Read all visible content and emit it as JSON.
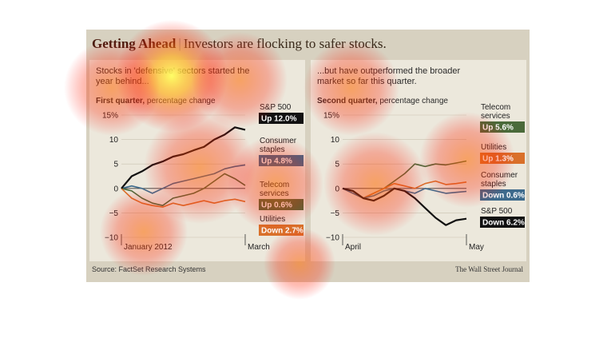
{
  "header": {
    "title_bold": "Getting Ahead",
    "separator": "|",
    "title_rest": "Investors are flocking to safer stocks."
  },
  "left": {
    "subtitle": "Stocks in 'defensive' sectors started the year behind...",
    "quarter_bold": "First quarter,",
    "quarter_rest": " percentage change",
    "x_start": "January 2012",
    "x_end": "March"
  },
  "right": {
    "subtitle": "...but have outperformed the broader market so far this quarter.",
    "quarter_bold": "Second quarter,",
    "quarter_rest": " percentage change",
    "x_start": "April",
    "x_end": "May"
  },
  "footer": {
    "source": "Source: FactSet Research Systems",
    "credit": "The Wall Street Journal"
  },
  "colors": {
    "sp500": "#111111",
    "consumer": "#3d6a8c",
    "telecom": "#4a6a3a",
    "utilities": "#d9702a"
  },
  "chart_data": [
    {
      "type": "line",
      "title": "First quarter, percentage change",
      "ylim": [
        -10,
        15
      ],
      "yticks": [
        "15%",
        "10",
        "5",
        "0",
        "−5",
        "−10"
      ],
      "ytick_values": [
        15,
        10,
        5,
        0,
        -5,
        -10
      ],
      "x": [
        0,
        1,
        2,
        3,
        4,
        5,
        6,
        7,
        8,
        9,
        10,
        11,
        12
      ],
      "series": [
        {
          "name": "S&P 500",
          "label": "Up 12.0%",
          "key": "sp500",
          "values": [
            0,
            2.5,
            3.5,
            4.8,
            5.5,
            6.5,
            7.0,
            7.8,
            8.5,
            10.0,
            11.0,
            12.5,
            12.0
          ]
        },
        {
          "name": "Consumer staples",
          "label": "Up 4.8%",
          "key": "consumer",
          "values": [
            0,
            0.5,
            0,
            -1,
            0,
            1,
            1.5,
            2,
            2.5,
            3,
            4,
            4.5,
            4.8
          ]
        },
        {
          "name": "Telecom services",
          "label": "Up 0.6%",
          "key": "telecom",
          "values": [
            0,
            -0.5,
            -2,
            -3,
            -3.5,
            -2,
            -1.5,
            -1,
            0,
            1.5,
            3,
            2,
            0.6
          ]
        },
        {
          "name": "Utilities",
          "label": "Down 2.7%",
          "key": "utilities",
          "values": [
            0,
            -2,
            -3,
            -3.5,
            -3.8,
            -3,
            -3.5,
            -3,
            -2.5,
            -3,
            -2.5,
            -2.2,
            -2.7
          ]
        }
      ]
    },
    {
      "type": "line",
      "title": "Second quarter, percentage change",
      "ylim": [
        -10,
        15
      ],
      "yticks": [
        "15%",
        "10",
        "5",
        "0",
        "−5",
        "−10"
      ],
      "ytick_values": [
        15,
        10,
        5,
        0,
        -5,
        -10
      ],
      "x": [
        0,
        1,
        2,
        3,
        4,
        5,
        6,
        7,
        8,
        9,
        10,
        11,
        12
      ],
      "series": [
        {
          "name": "Telecom services",
          "label": "Up 5.6%",
          "key": "telecom",
          "values": [
            0,
            -0.5,
            -2,
            -1,
            0,
            1.5,
            3,
            5,
            4.5,
            5,
            4.8,
            5.2,
            5.6
          ]
        },
        {
          "name": "Utilities",
          "label": "Up 1.3%",
          "key": "utilities",
          "values": [
            0,
            -1,
            -2,
            -1,
            0,
            1,
            0.5,
            0,
            1,
            1.5,
            0.8,
            1,
            1.3
          ]
        },
        {
          "name": "Consumer staples",
          "label": "Down 0.6%",
          "key": "consumer",
          "values": [
            0,
            -1,
            -2,
            -1.5,
            -0.5,
            0,
            -0.5,
            -1,
            0,
            -0.5,
            -1,
            -0.8,
            -0.6
          ]
        },
        {
          "name": "S&P 500",
          "label": "Down 6.2%",
          "key": "sp500",
          "values": [
            0,
            -0.5,
            -2,
            -2.5,
            -1.5,
            0,
            -0.5,
            -2,
            -4,
            -6,
            -7.5,
            -6.5,
            -6.2
          ]
        }
      ]
    }
  ]
}
